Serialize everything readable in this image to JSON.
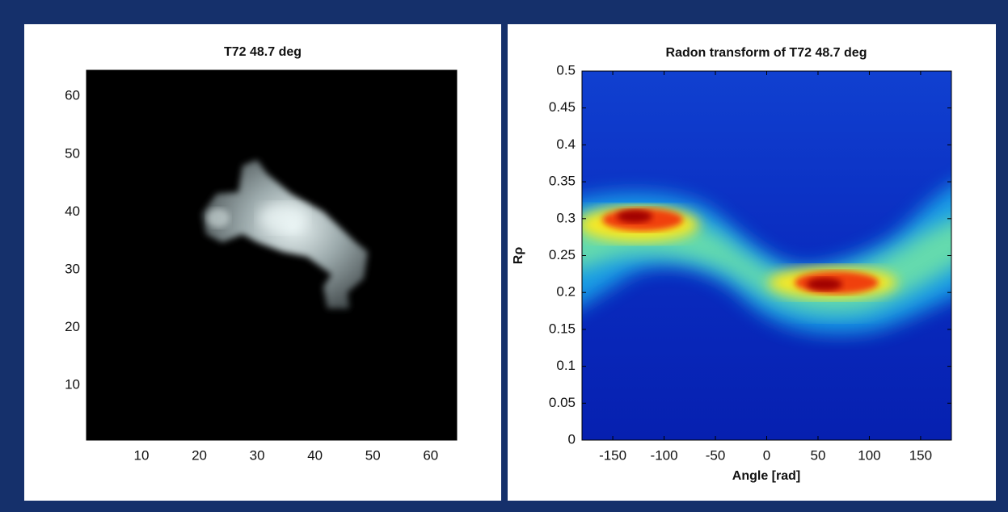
{
  "chart_data": [
    {
      "type": "heatmap",
      "title": "T72 48.7 deg",
      "xlim": [
        0.5,
        64.5
      ],
      "ylim": [
        0.5,
        64.5
      ],
      "xticks": [
        10,
        20,
        30,
        40,
        50,
        60
      ],
      "yticks": [
        10,
        20,
        30,
        40,
        50,
        60
      ]
    },
    {
      "type": "heatmap",
      "title": "Radon transform of T72 48.7 deg",
      "xlabel": "Angle [rad]",
      "ylabel": "Rρ",
      "xlim": [
        -180,
        180
      ],
      "ylim": [
        0,
        0.5
      ],
      "xticks": [
        -150,
        -100,
        -50,
        0,
        50,
        100,
        150
      ],
      "yticks": [
        0,
        0.05,
        0.1,
        0.15,
        0.2,
        0.25,
        0.3,
        0.35,
        0.4,
        0.45,
        0.5
      ]
    }
  ]
}
